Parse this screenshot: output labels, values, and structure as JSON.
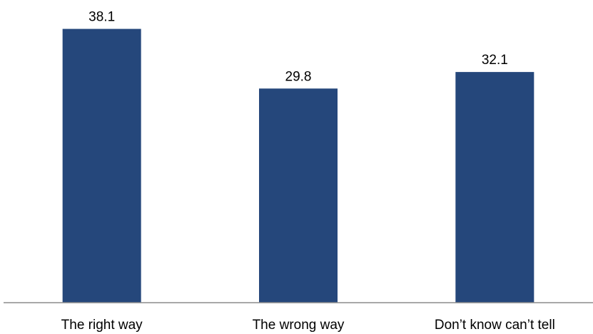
{
  "chart_data": {
    "type": "bar",
    "categories": [
      "The right way",
      "The wrong way",
      "Don’t know can’t tell"
    ],
    "values": [
      38.1,
      29.8,
      32.1
    ],
    "value_labels": [
      "38.1",
      "29.8",
      "32.1"
    ],
    "title": "",
    "xlabel": "",
    "ylabel": "",
    "ylim": [
      0,
      40
    ],
    "grid": false,
    "legend": "none",
    "bar_color": "#25477b"
  }
}
